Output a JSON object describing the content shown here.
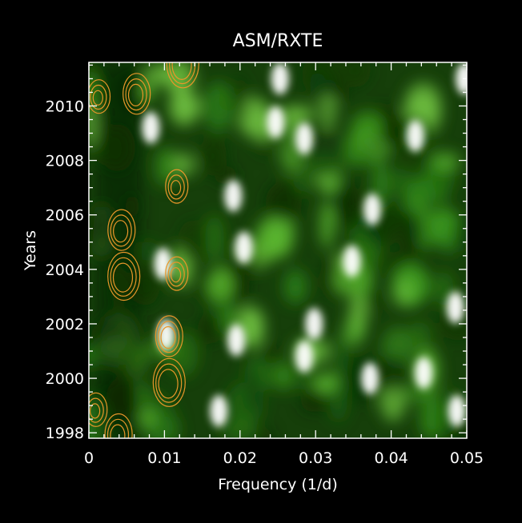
{
  "chart_data": {
    "type": "heatmap",
    "title": "ASM/RXTE",
    "xlabel": "Frequency (1/d)",
    "ylabel": "Years",
    "xlim": [
      0,
      0.05
    ],
    "ylim": [
      1997.8,
      2011.6
    ],
    "x_ticks": [
      0,
      0.01,
      0.02,
      0.03,
      0.04,
      0.05
    ],
    "x_tick_labels": [
      "0",
      "0.01",
      "0.02",
      "0.03",
      "0.04",
      "0.05"
    ],
    "y_ticks": [
      1998,
      2000,
      2002,
      2004,
      2006,
      2008,
      2010
    ],
    "y_tick_labels": [
      "1998",
      "2000",
      "2002",
      "2004",
      "2006",
      "2008",
      "2010"
    ],
    "grid": false,
    "colors": {
      "background": "#000000",
      "low": "#0b3a05",
      "mid": "#3f9a1e",
      "high": "#ffffff",
      "contour": "#e8962a"
    },
    "bright_regions": [
      {
        "x": 0.0253,
        "y": 2011.0
      },
      {
        "x": 0.0285,
        "y": 2008.8
      },
      {
        "x": 0.0247,
        "y": 2009.4
      },
      {
        "x": 0.0082,
        "y": 2009.2
      },
      {
        "x": 0.0098,
        "y": 2004.2
      },
      {
        "x": 0.0102,
        "y": 2001.6
      },
      {
        "x": 0.0195,
        "y": 2001.4
      },
      {
        "x": 0.0205,
        "y": 2004.8
      },
      {
        "x": 0.0191,
        "y": 2006.7
      },
      {
        "x": 0.0375,
        "y": 2006.2
      },
      {
        "x": 0.0372,
        "y": 2000.0
      },
      {
        "x": 0.0443,
        "y": 2000.2
      },
      {
        "x": 0.0485,
        "y": 2002.6
      },
      {
        "x": 0.0487,
        "y": 1998.8
      },
      {
        "x": 0.0432,
        "y": 2008.9
      },
      {
        "x": 0.0497,
        "y": 2011.0
      },
      {
        "x": 0.0348,
        "y": 2004.3
      },
      {
        "x": 0.0298,
        "y": 2002.0
      },
      {
        "x": 0.0172,
        "y": 1998.8
      },
      {
        "x": 0.0285,
        "y": 2000.8
      }
    ],
    "contour_regions": [
      {
        "x": 0.0012,
        "y": 2010.3
      },
      {
        "x": 0.0062,
        "y": 2010.4
      },
      {
        "x": 0.0123,
        "y": 2011.5
      },
      {
        "x": 0.0115,
        "y": 2007.0
      },
      {
        "x": 0.0042,
        "y": 2005.4
      },
      {
        "x": 0.0045,
        "y": 2003.7
      },
      {
        "x": 0.0115,
        "y": 2003.8
      },
      {
        "x": 0.0105,
        "y": 2001.5
      },
      {
        "x": 0.0105,
        "y": 1999.8
      },
      {
        "x": 0.0008,
        "y": 1998.8
      },
      {
        "x": 0.0038,
        "y": 1997.9
      }
    ]
  }
}
